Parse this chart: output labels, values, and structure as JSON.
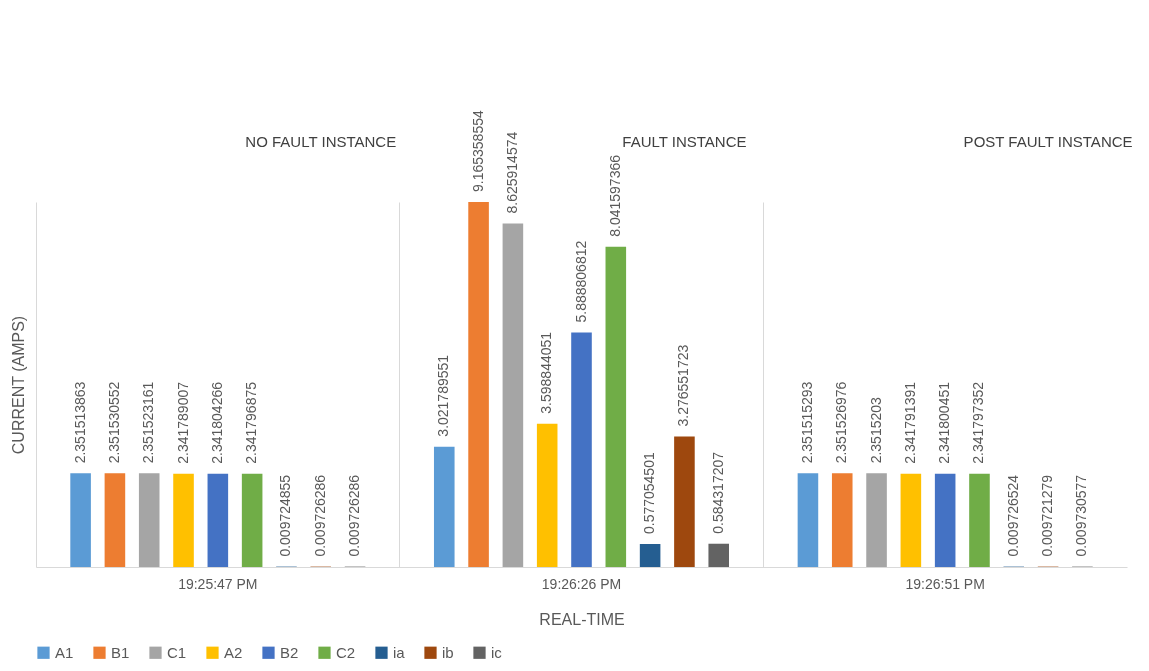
{
  "chart_data": {
    "type": "bar",
    "xlabel": "REAL-TIME",
    "ylabel": "CURRENT (AMPS)",
    "categories": [
      "19:25:47 PM",
      "19:26:26 PM",
      "19:26:51 PM"
    ],
    "series": [
      {
        "name": "A1",
        "color": "#5b9bd5",
        "values": [
          2.351513863,
          3.021789551,
          2.351515293
        ]
      },
      {
        "name": "B1",
        "color": "#ed7d31",
        "values": [
          2.351530552,
          9.165358554,
          2.351526976
        ]
      },
      {
        "name": "C1",
        "color": "#a5a5a5",
        "values": [
          2.351523161,
          8.625914574,
          2.3515203
        ]
      },
      {
        "name": "A2",
        "color": "#ffc000",
        "values": [
          2.341789007,
          3.598844051,
          2.341791391
        ]
      },
      {
        "name": "B2",
        "color": "#4472c4",
        "values": [
          2.341804266,
          5.888806812,
          2.341800451
        ]
      },
      {
        "name": "C2",
        "color": "#70ad47",
        "values": [
          2.341796875,
          8.041597366,
          2.341797352
        ]
      },
      {
        "name": "ia",
        "color": "#255e91",
        "values": [
          0.009724855,
          0.577054501,
          0.009726524
        ]
      },
      {
        "name": "ib",
        "color": "#9e480e",
        "values": [
          0.009726286,
          3.276551723,
          0.009721279
        ]
      },
      {
        "name": "ic",
        "color": "#636363",
        "values": [
          0.009726286,
          0.584317207,
          0.009730577
        ]
      }
    ],
    "data_labels": true,
    "grid": "x",
    "legend": "bottom",
    "annotations": [
      "NO FAULT INSTANCE",
      "FAULT INSTANCE",
      "POST FAULT INSTANCE"
    ]
  }
}
